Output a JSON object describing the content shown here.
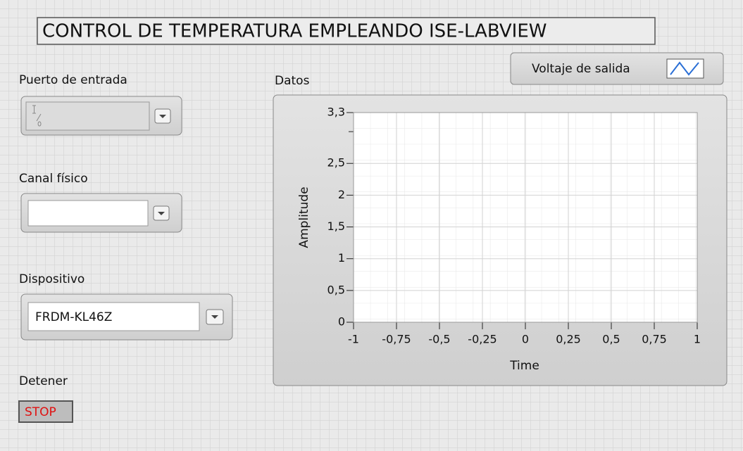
{
  "title": "CONTROL DE TEMPERATURA EMPLEANDO ISE-LABVIEW",
  "controls": [
    {
      "label": "Puerto de entrada"
    },
    {
      "label": "Canal físico"
    },
    {
      "label": "Dispositivo",
      "value": "FRDM-KL46Z"
    }
  ],
  "stop": {
    "label": "Detener",
    "button": "STOP"
  },
  "graph": {
    "label": "Datos",
    "legend": "Voltaje de salida",
    "xlabel": "Time",
    "ylabel": "Amplitude",
    "xlim": [
      -1,
      1
    ],
    "ylim": [
      0,
      3.3
    ],
    "xticks": [
      -1,
      {
        "value": -0.75,
        "label": "-0,75"
      },
      {
        "value": -0.5,
        "label": "-0,5"
      },
      {
        "value": -0.25,
        "label": "-0,25"
      },
      0,
      {
        "value": 0.25,
        "label": "0,25"
      },
      {
        "value": 0.5,
        "label": "0,5"
      },
      {
        "value": 0.75,
        "label": "0,75"
      },
      1
    ],
    "yticks": [
      0,
      {
        "value": 0.5,
        "label": "0,5"
      },
      1,
      {
        "value": 1.5,
        "label": "1,5"
      },
      2,
      {
        "value": 2.5,
        "label": "2,5"
      },
      {
        "value": 3.3,
        "label": "3,3"
      }
    ],
    "yminorticks": [
      3
    ]
  }
}
